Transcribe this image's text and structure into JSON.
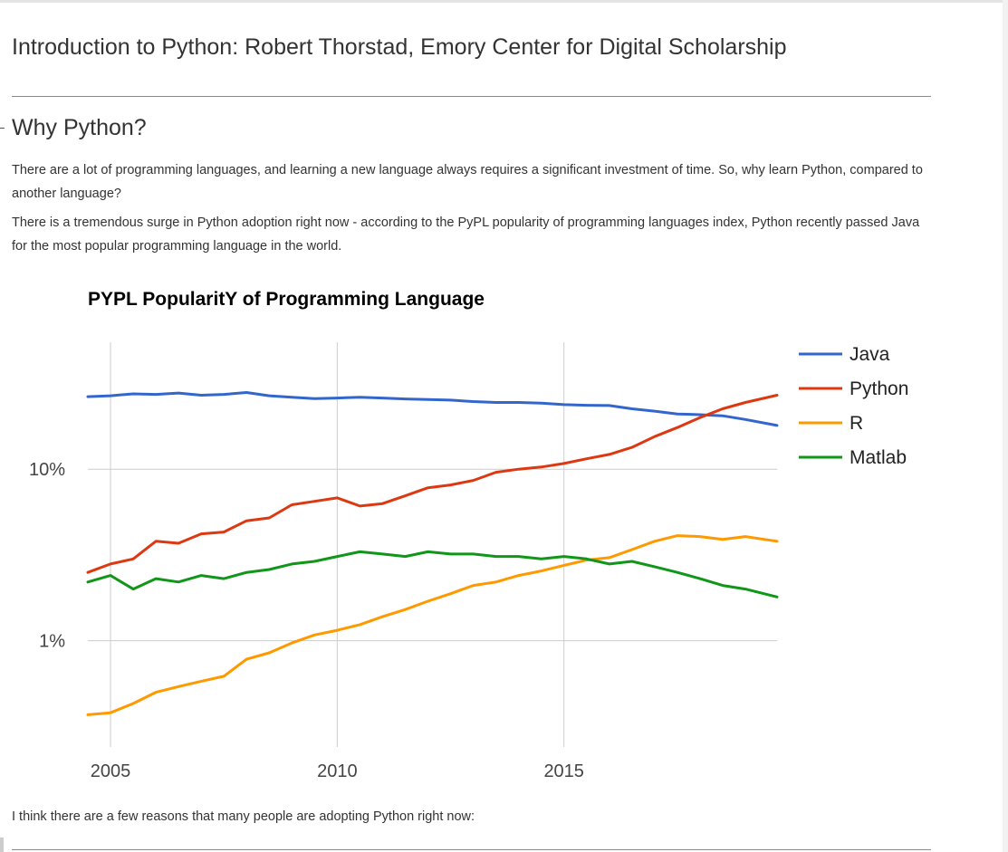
{
  "page": {
    "header_title": "Introduction to Python: Robert Thorstad, Emory Center for Digital Scholarship",
    "section_heading": "Why Python?",
    "paragraphs": [
      "There are a lot of programming languages, and learning a new language always requires a significant investment of time. So, why learn Python, compared to another language?",
      "There is a tremendous surge in Python adoption right now - according to the PyPL popularity of programming languages index, Python recently passed Java for the most popular programming language in the world."
    ],
    "closing_text": "I think there are a few reasons that many people are adopting Python right now:"
  },
  "chart_data": {
    "type": "line",
    "title": "PYPL PopularitY of Programming Language",
    "xlabel": "",
    "ylabel": "",
    "y_scale": "log",
    "xlim": [
      2004.5,
      2019.7
    ],
    "ylim": [
      0.24,
      55
    ],
    "x_ticks": [
      2005,
      2010,
      2015
    ],
    "x_tick_labels": [
      "2005",
      "2010",
      "2015"
    ],
    "y_ticks": [
      1,
      10
    ],
    "y_tick_labels": [
      "1%",
      "10%"
    ],
    "grid": true,
    "legend_position": "right",
    "series": [
      {
        "name": "Java",
        "color": "#3366cc",
        "x": [
          2004.5,
          2005,
          2005.5,
          2006,
          2006.5,
          2007,
          2007.5,
          2008,
          2008.5,
          2009,
          2009.5,
          2010,
          2010.5,
          2011,
          2011.5,
          2012,
          2012.5,
          2013,
          2013.5,
          2014,
          2014.5,
          2015,
          2015.5,
          2016,
          2016.5,
          2017,
          2017.5,
          2018,
          2018.5,
          2019,
          2019.7
        ],
        "y": [
          26.5,
          26.8,
          27.5,
          27.3,
          27.8,
          27.0,
          27.3,
          28.0,
          26.8,
          26.3,
          25.8,
          26.0,
          26.3,
          26.0,
          25.7,
          25.5,
          25.3,
          24.8,
          24.5,
          24.5,
          24.3,
          23.8,
          23.6,
          23.5,
          22.5,
          21.8,
          21.0,
          20.8,
          20.5,
          19.5,
          18.0
        ]
      },
      {
        "name": "Python",
        "color": "#dc3912",
        "x": [
          2004.5,
          2005,
          2005.5,
          2006,
          2006.5,
          2007,
          2007.5,
          2008,
          2008.5,
          2009,
          2009.5,
          2010,
          2010.5,
          2011,
          2011.5,
          2012,
          2012.5,
          2013,
          2013.5,
          2014,
          2014.5,
          2015,
          2015.5,
          2016,
          2016.5,
          2017,
          2017.5,
          2018,
          2018.5,
          2019,
          2019.7
        ],
        "y": [
          2.5,
          2.8,
          3.0,
          3.8,
          3.7,
          4.2,
          4.3,
          5.0,
          5.2,
          6.2,
          6.5,
          6.8,
          6.1,
          6.3,
          7.0,
          7.8,
          8.1,
          8.6,
          9.6,
          10.0,
          10.3,
          10.8,
          11.5,
          12.2,
          13.4,
          15.5,
          17.5,
          20.0,
          22.5,
          24.5,
          27.0
        ]
      },
      {
        "name": "R",
        "color": "#ff9900",
        "x": [
          2004.5,
          2005,
          2005.5,
          2006,
          2006.5,
          2007,
          2007.5,
          2008,
          2008.5,
          2009,
          2009.5,
          2010,
          2010.5,
          2011,
          2011.5,
          2012,
          2012.5,
          2013,
          2013.5,
          2014,
          2014.5,
          2015,
          2015.5,
          2016,
          2016.5,
          2017,
          2017.5,
          2018,
          2018.5,
          2019,
          2019.7
        ],
        "y": [
          0.37,
          0.38,
          0.43,
          0.5,
          0.54,
          0.58,
          0.62,
          0.78,
          0.85,
          0.97,
          1.08,
          1.15,
          1.24,
          1.38,
          1.52,
          1.7,
          1.88,
          2.1,
          2.2,
          2.4,
          2.55,
          2.75,
          2.95,
          3.05,
          3.4,
          3.8,
          4.1,
          4.05,
          3.9,
          4.05,
          3.8
        ]
      },
      {
        "name": "Matlab",
        "color": "#109618",
        "x": [
          2004.5,
          2005,
          2005.5,
          2006,
          2006.5,
          2007,
          2007.5,
          2008,
          2008.5,
          2009,
          2009.5,
          2010,
          2010.5,
          2011,
          2011.5,
          2012,
          2012.5,
          2013,
          2013.5,
          2014,
          2014.5,
          2015,
          2015.5,
          2016,
          2016.5,
          2017,
          2017.5,
          2018,
          2018.5,
          2019,
          2019.7
        ],
        "y": [
          2.2,
          2.4,
          2.0,
          2.3,
          2.2,
          2.4,
          2.3,
          2.5,
          2.6,
          2.8,
          2.9,
          3.1,
          3.3,
          3.2,
          3.1,
          3.3,
          3.2,
          3.2,
          3.1,
          3.1,
          3.0,
          3.1,
          3.0,
          2.8,
          2.9,
          2.7,
          2.5,
          2.3,
          2.1,
          2.0,
          1.8
        ]
      }
    ]
  }
}
